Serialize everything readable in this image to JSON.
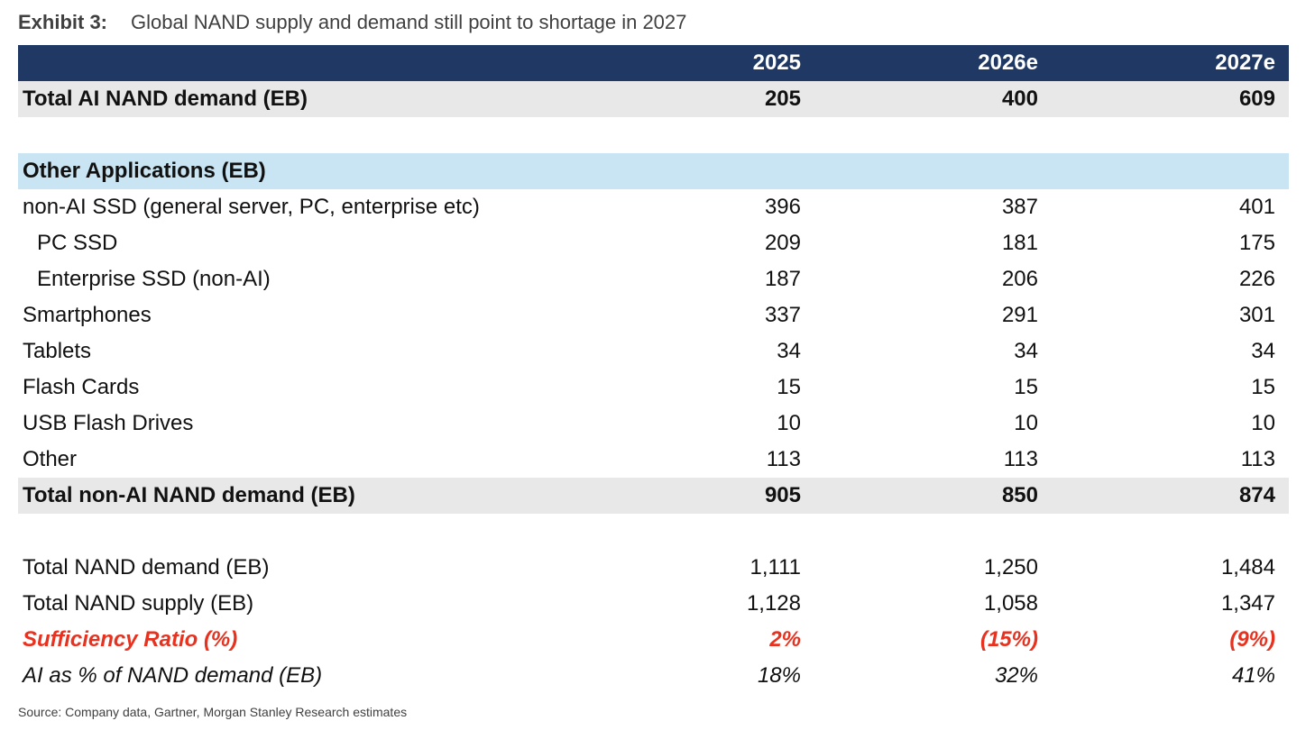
{
  "exhibit": {
    "label": "Exhibit 3:",
    "title": "Global NAND supply and demand still point to shortage in 2027"
  },
  "table": {
    "headers": [
      "",
      "2025",
      "2026e",
      "2027e"
    ],
    "rows": [
      {
        "kind": "total",
        "label": "Total AI NAND demand (EB)",
        "v": [
          "205",
          "400",
          "609"
        ]
      },
      {
        "kind": "spacer"
      },
      {
        "kind": "section",
        "label": "Other Applications (EB)",
        "v": [
          "",
          "",
          ""
        ]
      },
      {
        "kind": "normal",
        "label": "non-AI SSD (general server, PC, enterprise etc)",
        "v": [
          "396",
          "387",
          "401"
        ]
      },
      {
        "kind": "sub",
        "label": "PC SSD",
        "v": [
          "209",
          "181",
          "175"
        ]
      },
      {
        "kind": "sub",
        "label": "Enterprise SSD (non-AI)",
        "v": [
          "187",
          "206",
          "226"
        ]
      },
      {
        "kind": "normal",
        "label": "Smartphones",
        "v": [
          "337",
          "291",
          "301"
        ]
      },
      {
        "kind": "normal",
        "label": "Tablets",
        "v": [
          "34",
          "34",
          "34"
        ]
      },
      {
        "kind": "normal",
        "label": "Flash Cards",
        "v": [
          "15",
          "15",
          "15"
        ]
      },
      {
        "kind": "normal",
        "label": "USB Flash Drives",
        "v": [
          "10",
          "10",
          "10"
        ]
      },
      {
        "kind": "normal",
        "label": "Other",
        "v": [
          "113",
          "113",
          "113"
        ]
      },
      {
        "kind": "total",
        "label": "Total non-AI NAND demand (EB)",
        "v": [
          "905",
          "850",
          "874"
        ]
      },
      {
        "kind": "spacer"
      },
      {
        "kind": "normal",
        "label": "Total NAND demand (EB)",
        "v": [
          "1,111",
          "1,250",
          "1,484"
        ]
      },
      {
        "kind": "normal",
        "label": "Total NAND supply (EB)",
        "v": [
          "1,128",
          "1,058",
          "1,347"
        ]
      },
      {
        "kind": "red",
        "label": "Sufficiency Ratio (%)",
        "v": [
          "2%",
          "(15%)",
          "(9%)"
        ]
      },
      {
        "kind": "ital",
        "label": "AI as % of NAND demand (EB)",
        "v": [
          "18%",
          "32%",
          "41%"
        ]
      }
    ]
  },
  "source": "Source: Company data, Gartner, Morgan Stanley Research estimates",
  "colors": {
    "header_bg": "#1f3864",
    "total_bg": "#e8e8e8",
    "section_bg": "#c9e4f2",
    "negative_text": "#e8321f"
  }
}
